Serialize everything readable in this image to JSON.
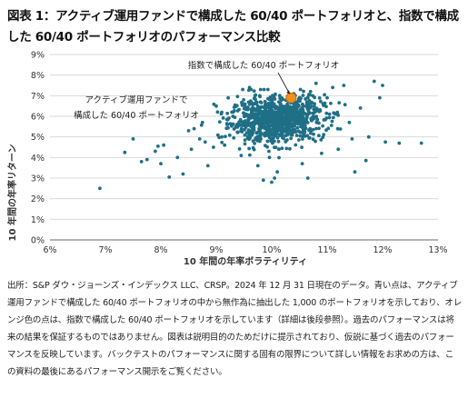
{
  "title": "図表 1：アクティブ運用ファンドで構成した 60/40 ポートフォリオと、指数で構成した 60/40 ポートフォリオのパフォーマンス比較",
  "footnote": "出所：S&P ダウ・ジョーンズ・インデックス LLC、CRSP。2024 年 12 月 31 日現在のデータ。青い点は、アクティブ運用ファンドで構成した 60/40 ポートフォリオの中から無作為に抽出した 1,000 のポートフォリオを示しており、オレンジ色の点は、指数で構成した 60/40 ポートフォリオを示しています（詳細は後段参照）。過去のパフォーマンスは将来の結果を保証するものではありません。図表は説明目的のためだけに提示されており、仮説に基づく過去のパフォーマンスを反映しています。バックテストのパフォーマンスに関する固有の限界について詳しい情報をお求めの方は、この資料の最後にあるパフォーマンス開示をご覧ください。",
  "colors": {
    "active": "#1f6f86",
    "index": "#f0901e",
    "grid": "#d9d9d9",
    "axis": "#666666"
  },
  "chart_data": {
    "type": "scatter",
    "title": "",
    "xlabel": "10 年間の年率ボラティリティ",
    "ylabel": "10 年間の年率リターン",
    "xlim": [
      6,
      13
    ],
    "ylim": [
      0,
      9
    ],
    "xticks": [
      "6%",
      "7%",
      "8%",
      "9%",
      "10%",
      "11%",
      "12%",
      "13%"
    ],
    "yticks": [
      "0%",
      "1%",
      "2%",
      "3%",
      "4%",
      "5%",
      "6%",
      "7%",
      "8%",
      "9%"
    ],
    "grid": "horizontal",
    "annotations": [
      {
        "text": "指数で構成した 60/40 ポートフォリオ",
        "target": "index"
      },
      {
        "text": "アクティブ運用ファンドで構成した 60/40 ポートフォリオ",
        "target": "active"
      }
    ],
    "series": [
      {
        "id": "active",
        "count": 1000,
        "points": [
          [
            6.9,
            2.5
          ],
          [
            7.35,
            4.25
          ],
          [
            7.5,
            4.9
          ],
          [
            7.65,
            3.8
          ],
          [
            7.75,
            3.9
          ],
          [
            7.9,
            4.3
          ],
          [
            7.95,
            4.55
          ],
          [
            8.05,
            4.6
          ],
          [
            8.0,
            3.7
          ],
          [
            8.15,
            3.05
          ],
          [
            8.3,
            4.0
          ],
          [
            8.4,
            3.2
          ],
          [
            8.55,
            4.4
          ],
          [
            8.6,
            5.4
          ],
          [
            8.7,
            4.9
          ],
          [
            8.8,
            4.75
          ],
          [
            8.85,
            3.6
          ],
          [
            8.95,
            4.5
          ],
          [
            9.1,
            5.0
          ],
          [
            9.2,
            5.6
          ],
          [
            9.3,
            6.0
          ],
          [
            9.45,
            4.1
          ],
          [
            9.55,
            5.2
          ],
          [
            9.5,
            6.6
          ],
          [
            9.7,
            7.0
          ],
          [
            9.75,
            3.6
          ],
          [
            9.85,
            2.9
          ],
          [
            10.05,
            3.0
          ],
          [
            10.1,
            3.3
          ],
          [
            9.95,
            4.3
          ],
          [
            10.55,
            3.7
          ],
          [
            10.65,
            3.0
          ],
          [
            10.8,
            7.6
          ],
          [
            11.1,
            7.4
          ],
          [
            11.3,
            7.5
          ],
          [
            11.5,
            3.3
          ],
          [
            11.7,
            3.85
          ],
          [
            11.85,
            7.7
          ],
          [
            12.0,
            7.5
          ],
          [
            12.05,
            4.75
          ],
          [
            12.3,
            4.7
          ],
          [
            12.7,
            4.7
          ],
          [
            11.95,
            6.9
          ],
          [
            11.4,
            5.7
          ],
          [
            11.2,
            4.4
          ],
          [
            10.9,
            4.2
          ],
          [
            10.4,
            7.1
          ],
          [
            9.6,
            7.4
          ],
          [
            9.0,
            6.5
          ],
          [
            8.75,
            5.7
          ],
          [
            11.6,
            6.4
          ],
          [
            11.0,
            6.9
          ],
          [
            9.35,
            5.5
          ],
          [
            9.8,
            7.3
          ],
          [
            10.7,
            7.2
          ],
          [
            9.15,
            4.6
          ],
          [
            11.45,
            4.9
          ],
          [
            10.0,
            2.8
          ],
          [
            8.5,
            5.3
          ],
          [
            11.75,
            5.0
          ]
        ]
      },
      {
        "id": "index",
        "points": [
          [
            10.35,
            6.9
          ]
        ]
      }
    ]
  }
}
